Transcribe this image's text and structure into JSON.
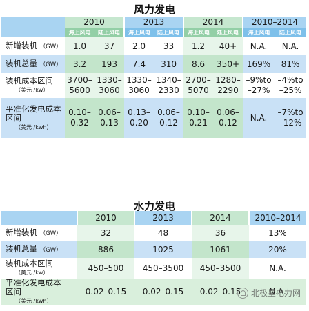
{
  "wind": {
    "title": "风力发电",
    "years": [
      "2010",
      "2013",
      "2014",
      "2010–2014"
    ],
    "sub_offshore": "海上风电",
    "sub_onshore": "陆上风电",
    "rows": [
      {
        "label": "新增装机",
        "unit": "（GW）",
        "values": [
          "1.0",
          "37",
          "2.0",
          "33",
          "1.2",
          "40+",
          "N.A.",
          "N.A."
        ]
      },
      {
        "label": "装机总量",
        "unit": "（GW）",
        "values": [
          "3.2",
          "193",
          "7.4",
          "310",
          "8.6",
          "350+",
          "169%",
          "81%"
        ]
      },
      {
        "label": "装机成本区间",
        "unit": "（美元 /kw）",
        "values": [
          "3700–\n5600",
          "1330–\n3060",
          "1330–\n3060",
          "1340–\n2330",
          "2700–\n5070",
          "1280–\n2290",
          "–9%to\n–27%",
          "–4%to\n–25%"
        ]
      },
      {
        "label": "平准化发电成本\n区间",
        "unit": "（美元 /kwh）",
        "values": [
          "0.10–\n0.32",
          "0.06–\n0.13",
          "0.13–\n0.20",
          "0.06–\n0.12",
          "0.10–\n0.21",
          "0.06–\n0.12",
          "N.A.",
          "–7%to\n–12%"
        ]
      }
    ]
  },
  "hydro": {
    "title": "水力发电",
    "years": [
      "2010",
      "2013",
      "2014",
      "2010–2014"
    ],
    "rows": [
      {
        "label": "新增装机",
        "unit": "（GW）",
        "values": [
          "32",
          "48",
          "36",
          "13%"
        ]
      },
      {
        "label": "装机总量",
        "unit": "（GW）",
        "values": [
          "886",
          "1025",
          "1061",
          "20%"
        ]
      },
      {
        "label": "装机成本区间",
        "unit": "（美元 /kw）",
        "values": [
          "450–500",
          "450–3500",
          "450–3500",
          "N.A."
        ]
      },
      {
        "label": "平准化发电成本\n区间",
        "unit": "（美元 /kwh）",
        "values": [
          "0.02–0.15",
          "0.02–0.15",
          "0.02–0.15",
          "N.A."
        ]
      }
    ]
  },
  "watermark": "北极星电力网"
}
